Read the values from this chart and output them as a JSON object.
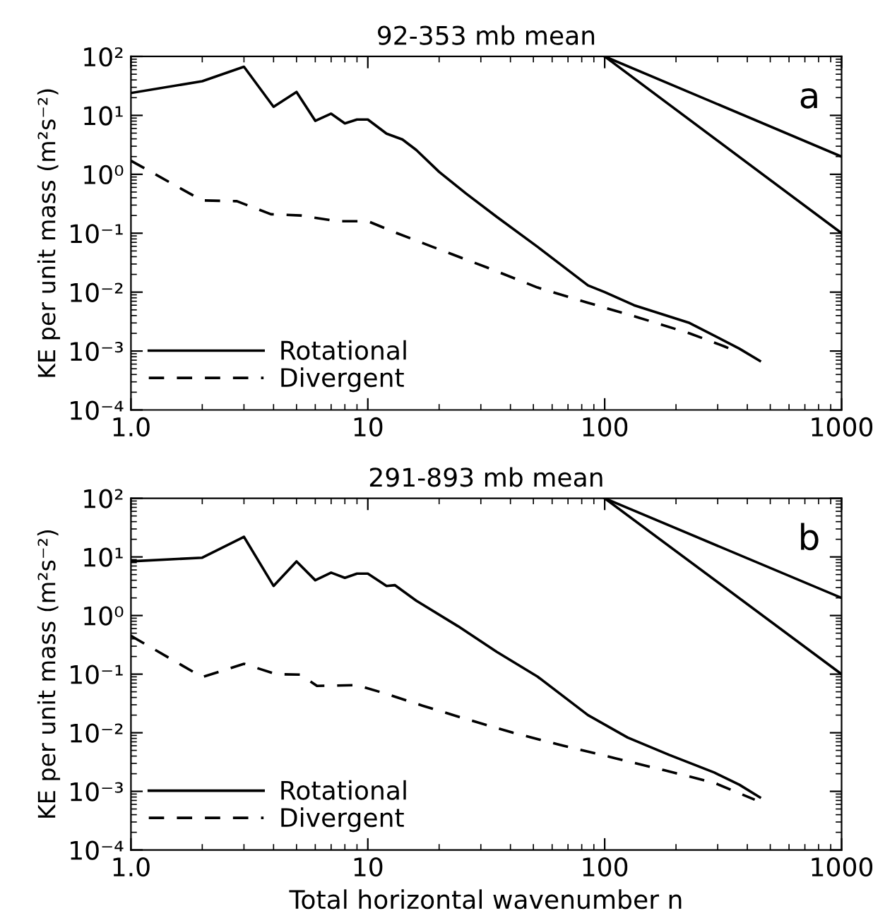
{
  "chart_data": [
    {
      "type": "line",
      "title": "92-353 mb mean",
      "ylabel": "KE per unit mass (m²s⁻²)",
      "annotations": [
        "a"
      ],
      "xlim": [
        1,
        1000
      ],
      "ylim": [
        0.0001,
        100
      ],
      "log": "xy",
      "xticks": [
        {
          "value": 1,
          "label": "1.0"
        },
        10,
        100,
        1000
      ],
      "yticks": [
        {
          "value": 0.0001,
          "label": "10⁻⁴"
        },
        {
          "value": 0.001,
          "label": "10⁻³"
        },
        {
          "value": 0.01,
          "label": "10⁻²"
        },
        {
          "value": 0.1,
          "label": "10⁻¹"
        },
        {
          "value": 1,
          "label": "10⁰"
        },
        {
          "value": 10,
          "label": "10¹"
        },
        {
          "value": 100,
          "label": "10²"
        }
      ],
      "legend": "bottom left",
      "grid": false,
      "series": [
        {
          "name": "Rotational",
          "color": "#000000",
          "line_style": "solid",
          "x": [
            1,
            2,
            3,
            4,
            5,
            6,
            7,
            8,
            9,
            10,
            12,
            14,
            16,
            20,
            26,
            35,
            52,
            85,
            100,
            133,
            228,
            370,
            452
          ],
          "values": [
            24,
            38,
            67,
            14,
            25,
            8.1,
            10.7,
            7.3,
            8.5,
            8.5,
            4.9,
            3.9,
            2.6,
            1.1,
            0.47,
            0.19,
            0.059,
            0.013,
            0.01,
            0.006,
            0.003,
            0.0011,
            0.00068
          ]
        },
        {
          "name": "Divergent",
          "color": "#000000",
          "line_style": "dashed",
          "x": [
            1,
            2,
            2.8,
            3.9,
            5.2,
            7.4,
            10,
            13.3,
            18.7,
            32,
            52,
            85,
            139,
            228,
            320,
            370
          ],
          "values": [
            1.7,
            0.36,
            0.35,
            0.21,
            0.2,
            0.16,
            0.16,
            0.1,
            0.059,
            0.026,
            0.012,
            0.0066,
            0.0037,
            0.002,
            0.0012,
            0.00093
          ]
        },
        {
          "color": "#000000",
          "line_style": "solid",
          "x": [
            100,
            1000
          ],
          "values": [
            100,
            2
          ]
        },
        {
          "color": "#000000",
          "line_style": "solid",
          "x": [
            100,
            1000
          ],
          "values": [
            100,
            0.1
          ]
        }
      ]
    },
    {
      "type": "line",
      "title": "291-893 mb mean",
      "xlabel": "Total horizontal wavenumber n",
      "ylabel": "KE per unit mass (m²s⁻²)",
      "annotations": [
        "b"
      ],
      "xlim": [
        1,
        1000
      ],
      "ylim": [
        0.0001,
        100
      ],
      "log": "xy",
      "xticks": [
        {
          "value": 1,
          "label": "1.0"
        },
        10,
        100,
        1000
      ],
      "yticks": [
        {
          "value": 0.0001,
          "label": "10⁻⁴"
        },
        {
          "value": 0.001,
          "label": "10⁻³"
        },
        {
          "value": 0.01,
          "label": "10⁻²"
        },
        {
          "value": 0.1,
          "label": "10⁻¹"
        },
        {
          "value": 1,
          "label": "10⁰"
        },
        {
          "value": 10,
          "label": "10¹"
        },
        {
          "value": 100,
          "label": "10²"
        }
      ],
      "legend": "bottom left",
      "grid": false,
      "series": [
        {
          "name": "Rotational",
          "color": "#000000",
          "line_style": "solid",
          "x": [
            1,
            2,
            3,
            4,
            5,
            6,
            7,
            8,
            9,
            10,
            12,
            13,
            16,
            24,
            35,
            52,
            85,
            125,
            187,
            290,
            370,
            452
          ],
          "values": [
            8.4,
            9.7,
            22,
            3.2,
            8.4,
            4.0,
            5.4,
            4.4,
            5.2,
            5.2,
            3.2,
            3.3,
            1.8,
            0.66,
            0.24,
            0.091,
            0.02,
            0.0083,
            0.0042,
            0.0021,
            0.0013,
            0.00079
          ]
        },
        {
          "name": "Divergent",
          "color": "#000000",
          "line_style": "dashed",
          "x": [
            1,
            2,
            3,
            4.1,
            5.2,
            6.1,
            9,
            12,
            17,
            25,
            41,
            67,
            110,
            178,
            290,
            430
          ],
          "values": [
            0.45,
            0.089,
            0.15,
            0.1,
            0.098,
            0.063,
            0.065,
            0.046,
            0.029,
            0.018,
            0.01,
            0.006,
            0.0037,
            0.0023,
            0.0014,
            0.00072
          ]
        },
        {
          "color": "#000000",
          "line_style": "solid",
          "x": [
            100,
            1000
          ],
          "values": [
            100,
            2
          ]
        },
        {
          "color": "#000000",
          "line_style": "solid",
          "x": [
            100,
            1000
          ],
          "values": [
            100,
            0.1
          ]
        }
      ]
    }
  ]
}
